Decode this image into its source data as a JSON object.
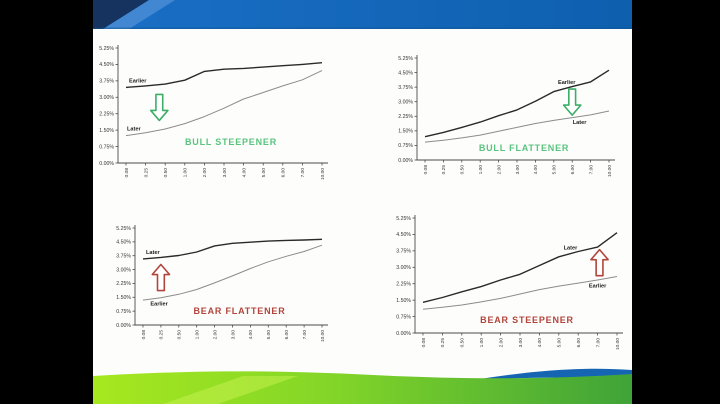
{
  "slide": {
    "type": "presentation-slide",
    "palette": {
      "top_band_blue": "#1a6fc6",
      "top_band_blue_dark": "#0e5fae",
      "top_band_navy": "#16325f",
      "top_band_light_blue": "#4187d1",
      "bottom_band_green_light": "#a7e81f",
      "bottom_band_green_dark": "#3fa338",
      "bottom_band_stripe": "#c3f04d",
      "bottom_band_blue_wave": "#1565b2",
      "bull_green": "#59c47e",
      "bear_red": "#b2453c",
      "line_dark": "#2a2a2a",
      "line_gray": "#8c8c8c"
    }
  },
  "chart_data": [
    {
      "type": "line",
      "title": "BULL STEEPENER",
      "title_color": "#59c47e",
      "xlabel": "",
      "ylabel": "",
      "ylim": [
        0,
        5.25
      ],
      "y_tick_step": 0.75,
      "y_tick_labels": [
        "5.25%",
        "4.50%",
        "3.75%",
        "3.00%",
        "2.25%",
        "1.50%",
        "0.75%",
        "0.00%"
      ],
      "x_tick_labels": [
        "0.08",
        "0.25",
        "0.50",
        "1.00",
        "2.00",
        "3.00",
        "4.00",
        "5.00",
        "6.00",
        "7.00",
        "10.00"
      ],
      "grid": false,
      "legend_position": "inline-labels",
      "arrow": {
        "icon": "down-arrow-icon",
        "direction": "down",
        "color": "#3cae68",
        "at_index": 1.7
      },
      "series": [
        {
          "name": "Earlier",
          "color": "#2a2a2a",
          "label_index": 0.6,
          "label_side": "above",
          "values": [
            3.45,
            3.52,
            3.6,
            3.78,
            4.18,
            4.28,
            4.32,
            4.38,
            4.44,
            4.5,
            4.58
          ]
        },
        {
          "name": "Later",
          "color": "#8c8c8c",
          "label_index": 0.4,
          "label_side": "above",
          "values": [
            1.25,
            1.38,
            1.55,
            1.8,
            2.12,
            2.5,
            2.92,
            3.22,
            3.52,
            3.8,
            4.22
          ]
        }
      ]
    },
    {
      "type": "line",
      "title": "BULL FLATTENER",
      "title_color": "#59c47e",
      "xlabel": "",
      "ylabel": "",
      "ylim": [
        0,
        5.25
      ],
      "y_tick_step": 0.75,
      "y_tick_labels": [
        "5.25%",
        "4.50%",
        "3.75%",
        "3.00%",
        "2.25%",
        "1.50%",
        "0.75%",
        "0.00%"
      ],
      "x_tick_labels": [
        "0.08",
        "0.25",
        "0.50",
        "1.00",
        "2.00",
        "3.00",
        "4.00",
        "5.00",
        "6.00",
        "7.00",
        "10.00"
      ],
      "grid": false,
      "legend_position": "inline-labels",
      "arrow": {
        "icon": "down-arrow-icon",
        "direction": "down",
        "color": "#3cae68",
        "at_index": 8.0
      },
      "series": [
        {
          "name": "Earlier",
          "color": "#2a2a2a",
          "label_index": 7.7,
          "label_side": "above",
          "values": [
            1.2,
            1.42,
            1.68,
            1.95,
            2.28,
            2.58,
            3.02,
            3.52,
            3.78,
            4.02,
            4.62
          ]
        },
        {
          "name": "Later",
          "color": "#8c8c8c",
          "label_index": 8.4,
          "label_side": "below",
          "values": [
            0.92,
            1.02,
            1.14,
            1.28,
            1.48,
            1.68,
            1.88,
            2.04,
            2.18,
            2.32,
            2.52
          ]
        }
      ]
    },
    {
      "type": "line",
      "title": "BEAR FLATTENER",
      "title_color": "#b2453c",
      "xlabel": "",
      "ylabel": "",
      "ylim": [
        0,
        5.25
      ],
      "y_tick_step": 0.75,
      "y_tick_labels": [
        "5.25%",
        "4.50%",
        "3.75%",
        "3.00%",
        "2.25%",
        "1.50%",
        "0.75%",
        "0.00%"
      ],
      "x_tick_labels": [
        "0.08",
        "0.25",
        "0.50",
        "1.00",
        "2.00",
        "3.00",
        "4.00",
        "5.00",
        "6.00",
        "7.00",
        "10.00"
      ],
      "grid": false,
      "legend_position": "inline-labels",
      "arrow": {
        "icon": "up-arrow-icon",
        "direction": "up",
        "color": "#b2453c",
        "at_index": 1.0
      },
      "series": [
        {
          "name": "Later",
          "color": "#2a2a2a",
          "label_index": 0.55,
          "label_side": "above",
          "values": [
            3.58,
            3.66,
            3.76,
            3.95,
            4.28,
            4.42,
            4.48,
            4.54,
            4.58,
            4.6,
            4.64
          ]
        },
        {
          "name": "Earlier",
          "color": "#8c8c8c",
          "label_index": 0.9,
          "label_side": "below",
          "values": [
            1.35,
            1.48,
            1.66,
            1.92,
            2.28,
            2.66,
            3.06,
            3.42,
            3.72,
            3.98,
            4.32
          ]
        }
      ]
    },
    {
      "type": "line",
      "title": "BEAR STEEPENER",
      "title_color": "#b2453c",
      "xlabel": "",
      "ylabel": "",
      "ylim": [
        0,
        5.25
      ],
      "y_tick_step": 0.75,
      "y_tick_labels": [
        "5.25%",
        "4.50%",
        "3.75%",
        "3.00%",
        "2.25%",
        "1.50%",
        "0.75%",
        "0.00%"
      ],
      "x_tick_labels": [
        "0.08",
        "0.25",
        "0.50",
        "1.00",
        "2.00",
        "3.00",
        "4.00",
        "5.00",
        "6.00",
        "7.00",
        "10.00"
      ],
      "grid": false,
      "legend_position": "inline-labels",
      "arrow": {
        "icon": "up-arrow-icon",
        "direction": "up",
        "color": "#b2453c",
        "at_index": 9.1
      },
      "series": [
        {
          "name": "Later",
          "color": "#2a2a2a",
          "label_index": 7.6,
          "label_side": "above",
          "values": [
            1.4,
            1.62,
            1.88,
            2.12,
            2.42,
            2.68,
            3.08,
            3.48,
            3.72,
            3.92,
            4.58
          ]
        },
        {
          "name": "Earlier",
          "color": "#8c8c8c",
          "label_index": 9.0,
          "label_side": "below",
          "values": [
            1.08,
            1.18,
            1.28,
            1.42,
            1.58,
            1.78,
            1.98,
            2.14,
            2.28,
            2.42,
            2.58
          ]
        }
      ]
    }
  ]
}
